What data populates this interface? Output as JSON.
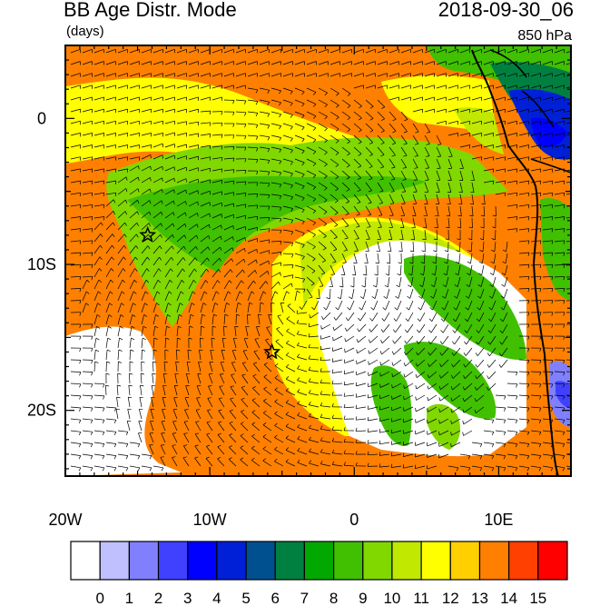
{
  "map": {
    "title": "BB Age Distr. Mode",
    "units": "(days)",
    "valid_time": "2018-09-30_06",
    "level": "850 hPa",
    "region": {
      "lon_min": -20,
      "lon_max": 15,
      "lat_min": -24.5,
      "lat_max": 5
    },
    "x_ticks": [
      {
        "lon": -20,
        "label": "20W"
      },
      {
        "lon": -10,
        "label": "10W"
      },
      {
        "lon": 0,
        "label": "0"
      },
      {
        "lon": 10,
        "label": "10E"
      }
    ],
    "y_ticks": [
      {
        "lat": 0,
        "label": "0"
      },
      {
        "lat": -10,
        "label": "10S"
      },
      {
        "lat": -20,
        "label": "20S"
      }
    ],
    "markers": [
      {
        "name": "star",
        "lon": -14.3,
        "lat": -8.0
      },
      {
        "name": "star",
        "lon": -5.7,
        "lat": -16.0
      }
    ],
    "features": [
      "filled age contours",
      "wind barbs",
      "coastline"
    ]
  },
  "colorbar": {
    "labels": [
      "0",
      "1",
      "2",
      "3",
      "4",
      "5",
      "6",
      "7",
      "8",
      "9",
      "10",
      "11",
      "12",
      "13",
      "14",
      "15"
    ],
    "colors": [
      "#ffffff",
      "#c0c0ff",
      "#8080ff",
      "#4040ff",
      "#0000ff",
      "#0020d8",
      "#005090",
      "#008040",
      "#00a800",
      "#40c000",
      "#80d800",
      "#c0e800",
      "#ffff00",
      "#ffd000",
      "#ff8000",
      "#ff4000",
      "#ff0000"
    ]
  }
}
